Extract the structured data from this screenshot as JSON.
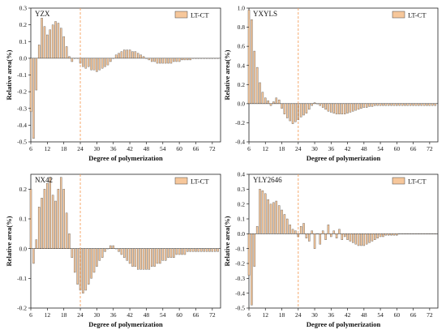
{
  "colors": {
    "bar_fill": "#f6c79b",
    "bar_stroke": "#444444",
    "dash": "#f4a261",
    "axis": "#222222"
  },
  "legend_label": "LT-CT",
  "chart_data": [
    {
      "type": "bar",
      "title": "YZX",
      "xlabel": "Degree of polymerization",
      "ylabel": "Relative area(%)",
      "xlim": [
        6,
        75
      ],
      "ylim": [
        -0.5,
        0.3
      ],
      "xticks": [
        6,
        12,
        18,
        24,
        30,
        36,
        42,
        48,
        54,
        60,
        66,
        72
      ],
      "yticks": [
        -0.5,
        -0.4,
        -0.3,
        -0.2,
        -0.1,
        0.0,
        0.1,
        0.2,
        0.3
      ],
      "dashed_x": 24,
      "x": [
        6,
        7,
        8,
        9,
        10,
        11,
        12,
        13,
        14,
        15,
        16,
        17,
        18,
        19,
        20,
        21,
        22,
        23,
        24,
        25,
        26,
        27,
        28,
        29,
        30,
        31,
        32,
        33,
        34,
        35,
        36,
        37,
        38,
        39,
        40,
        41,
        42,
        43,
        44,
        45,
        46,
        47,
        48,
        49,
        50,
        51,
        52,
        53,
        54,
        55,
        56,
        57,
        58,
        59,
        60,
        61,
        62,
        63,
        64,
        65,
        66,
        67,
        68,
        69,
        70,
        71,
        72,
        73,
        74
      ],
      "values": [
        -0.32,
        -0.48,
        -0.19,
        0.08,
        0.24,
        0.19,
        0.14,
        0.17,
        0.2,
        0.22,
        0.21,
        0.18,
        0.13,
        0.07,
        0.01,
        -0.02,
        0,
        0,
        -0.03,
        -0.05,
        -0.06,
        -0.05,
        -0.07,
        -0.07,
        -0.08,
        -0.07,
        -0.06,
        -0.05,
        -0.04,
        -0.02,
        0,
        0.02,
        0.03,
        0.04,
        0.05,
        0.05,
        0.05,
        0.04,
        0.04,
        0.03,
        0.02,
        0.01,
        0,
        -0.01,
        -0.02,
        -0.02,
        -0.03,
        -0.03,
        -0.03,
        -0.03,
        -0.03,
        -0.03,
        -0.02,
        -0.02,
        -0.02,
        -0.01,
        -0.01,
        -0.01,
        -0.01,
        0,
        0,
        0,
        0,
        0,
        0,
        0,
        0,
        0,
        0
      ],
      "legend": "top-right"
    },
    {
      "type": "bar",
      "title": "YXYLS",
      "xlabel": "Degree of polymerization",
      "ylabel": "Relative area(%)",
      "xlim": [
        6,
        75
      ],
      "ylim": [
        -0.4,
        1.0
      ],
      "xticks": [
        6,
        12,
        18,
        24,
        30,
        36,
        42,
        48,
        54,
        60,
        66,
        72
      ],
      "yticks": [
        -0.4,
        -0.2,
        0.0,
        0.2,
        0.4,
        0.6,
        0.8,
        1.0
      ],
      "dashed_x": 24,
      "x": [
        6,
        7,
        8,
        9,
        10,
        11,
        12,
        13,
        14,
        15,
        16,
        17,
        18,
        19,
        20,
        21,
        22,
        23,
        24,
        25,
        26,
        27,
        28,
        29,
        30,
        31,
        32,
        33,
        34,
        35,
        36,
        37,
        38,
        39,
        40,
        41,
        42,
        43,
        44,
        45,
        46,
        47,
        48,
        49,
        50,
        51,
        52,
        53,
        54,
        55,
        56,
        57,
        58,
        59,
        60,
        61,
        62,
        63,
        64,
        65,
        66,
        67,
        68,
        69,
        70,
        71,
        72,
        73,
        74
      ],
      "values": [
        0.98,
        0.88,
        0.55,
        0.38,
        0.22,
        0.12,
        0.06,
        0.03,
        -0.02,
        0.02,
        0.06,
        0.04,
        -0.05,
        -0.11,
        -0.15,
        -0.18,
        -0.21,
        -0.19,
        -0.17,
        -0.14,
        -0.12,
        -0.1,
        -0.06,
        -0.02,
        0.01,
        0,
        -0.02,
        -0.04,
        -0.06,
        -0.08,
        -0.09,
        -0.1,
        -0.11,
        -0.11,
        -0.11,
        -0.11,
        -0.1,
        -0.09,
        -0.08,
        -0.07,
        -0.06,
        -0.05,
        -0.04,
        -0.04,
        -0.03,
        -0.03,
        -0.02,
        -0.02,
        -0.02,
        -0.02,
        -0.02,
        -0.02,
        -0.02,
        -0.02,
        -0.02,
        -0.02,
        -0.02,
        -0.02,
        -0.02,
        -0.02,
        -0.02,
        -0.02,
        -0.02,
        -0.02,
        -0.02,
        -0.02,
        -0.02,
        -0.02,
        -0.02
      ],
      "legend": "top-right"
    },
    {
      "type": "bar",
      "title": "NX42",
      "xlabel": "Degree of polymerization",
      "ylabel": "Relative area(%)",
      "xlim": [
        6,
        75
      ],
      "ylim": [
        -0.2,
        0.25
      ],
      "xticks": [
        6,
        12,
        18,
        24,
        30,
        36,
        42,
        48,
        54,
        60,
        66,
        72
      ],
      "yticks": [
        -0.2,
        -0.1,
        0.0,
        0.1,
        0.2
      ],
      "dashed_x": 24,
      "x": [
        6,
        7,
        8,
        9,
        10,
        11,
        12,
        13,
        14,
        15,
        16,
        17,
        18,
        19,
        20,
        21,
        22,
        23,
        24,
        25,
        26,
        27,
        28,
        29,
        30,
        31,
        32,
        33,
        34,
        35,
        36,
        37,
        38,
        39,
        40,
        41,
        42,
        43,
        44,
        45,
        46,
        47,
        48,
        49,
        50,
        51,
        52,
        53,
        54,
        55,
        56,
        57,
        58,
        59,
        60,
        61,
        62,
        63,
        64,
        65,
        66,
        67,
        68,
        69,
        70,
        71,
        72,
        73,
        74
      ],
      "values": [
        0.2,
        -0.05,
        0.03,
        0.14,
        0.17,
        0.2,
        0.22,
        0.24,
        0.18,
        0.16,
        0.2,
        0.24,
        0.2,
        0.12,
        0.05,
        -0.03,
        -0.08,
        -0.12,
        -0.14,
        -0.15,
        -0.14,
        -0.12,
        -0.1,
        -0.08,
        -0.06,
        -0.04,
        -0.03,
        -0.01,
        0,
        0.01,
        0.01,
        0,
        -0.01,
        -0.02,
        -0.03,
        -0.04,
        -0.05,
        -0.06,
        -0.06,
        -0.07,
        -0.07,
        -0.07,
        -0.07,
        -0.07,
        -0.06,
        -0.06,
        -0.05,
        -0.05,
        -0.04,
        -0.04,
        -0.03,
        -0.03,
        -0.03,
        -0.02,
        -0.02,
        -0.02,
        -0.02,
        -0.01,
        -0.01,
        -0.01,
        -0.01,
        -0.01,
        -0.01,
        -0.01,
        -0.01,
        -0.01,
        -0.01,
        -0.01,
        -0.01
      ],
      "legend": "top-right"
    },
    {
      "type": "bar",
      "title": "YLY2646",
      "xlabel": "Degree of polymerization",
      "ylabel": "Relative area(%)",
      "xlim": [
        6,
        75
      ],
      "ylim": [
        -0.5,
        0.4
      ],
      "xticks": [
        6,
        12,
        18,
        24,
        30,
        36,
        42,
        48,
        54,
        60,
        66,
        72
      ],
      "yticks": [
        -0.5,
        -0.4,
        -0.3,
        -0.2,
        -0.1,
        0.0,
        0.1,
        0.2,
        0.3,
        0.4
      ],
      "dashed_x": 24,
      "x": [
        6,
        7,
        8,
        9,
        10,
        11,
        12,
        13,
        14,
        15,
        16,
        17,
        18,
        19,
        20,
        21,
        22,
        23,
        24,
        25,
        26,
        27,
        28,
        29,
        30,
        31,
        32,
        33,
        34,
        35,
        36,
        37,
        38,
        39,
        40,
        41,
        42,
        43,
        44,
        45,
        46,
        47,
        48,
        49,
        50,
        51,
        52,
        53,
        54,
        55,
        56,
        57,
        58,
        59,
        60,
        61,
        62,
        63,
        64,
        65,
        66,
        67,
        68,
        69,
        70,
        71,
        72,
        73,
        74
      ],
      "values": [
        -0.28,
        -0.48,
        -0.22,
        0.05,
        0.3,
        0.29,
        0.27,
        0.23,
        0.2,
        0.21,
        0.22,
        0.19,
        0.16,
        0.13,
        0.1,
        0.06,
        0.03,
        0.02,
        -0.02,
        0.05,
        0.07,
        -0.03,
        -0.05,
        0.02,
        -0.1,
        0,
        -0.07,
        0.02,
        -0.04,
        0.06,
        -0.02,
        0.02,
        -0.03,
        0.03,
        -0.04,
        -0.02,
        -0.04,
        -0.05,
        -0.06,
        -0.07,
        -0.08,
        -0.08,
        -0.08,
        -0.07,
        -0.06,
        -0.05,
        -0.04,
        -0.03,
        -0.02,
        -0.02,
        -0.01,
        -0.01,
        -0.01,
        -0.01,
        -0.01,
        0,
        0,
        0,
        0,
        0,
        0,
        0,
        0,
        0,
        0,
        0,
        0,
        0,
        0
      ],
      "legend": "top-right"
    }
  ]
}
